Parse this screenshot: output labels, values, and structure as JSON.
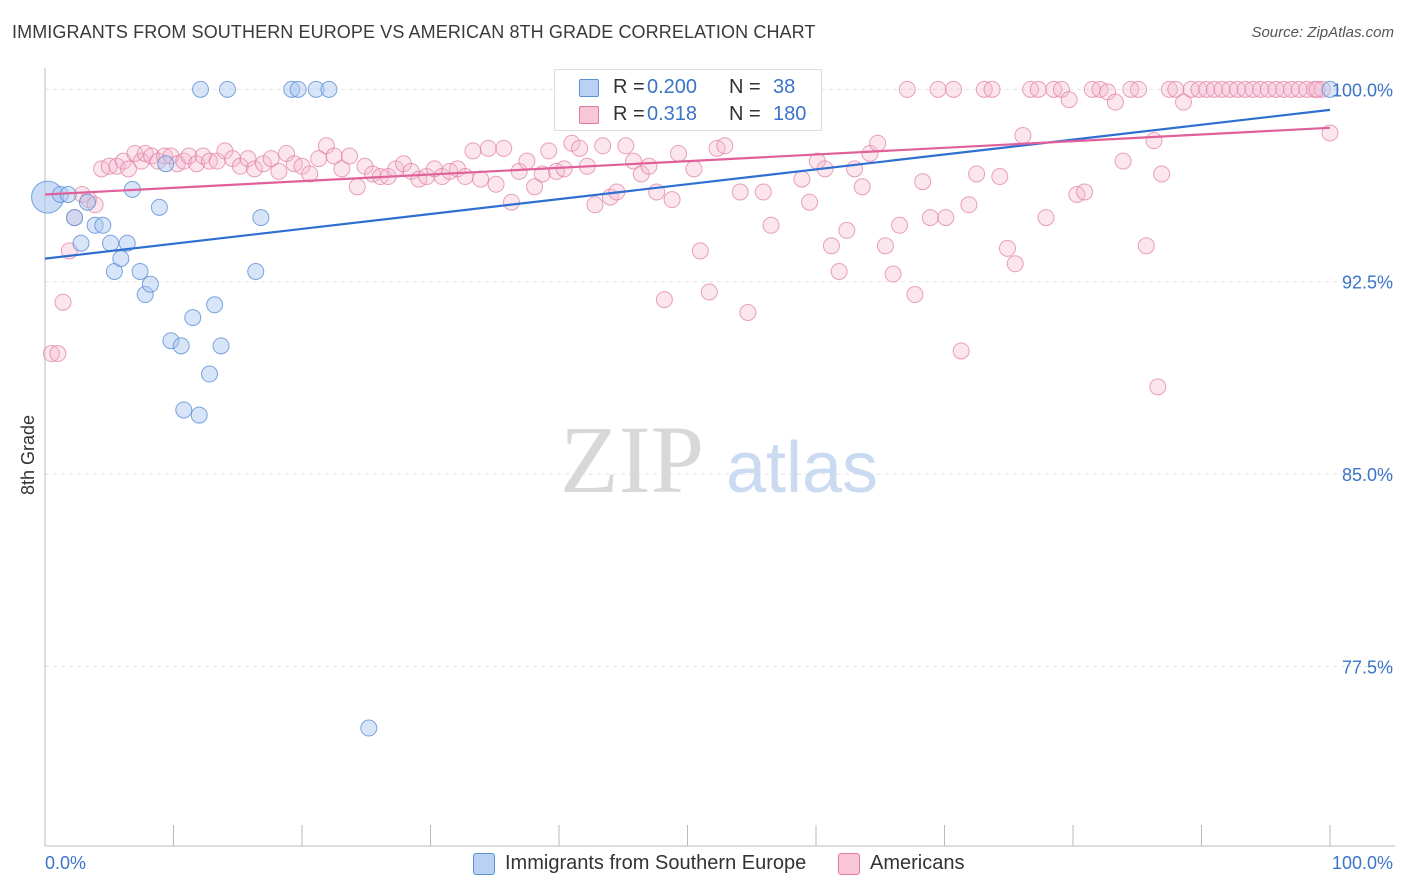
{
  "title": "IMMIGRANTS FROM SOUTHERN EUROPE VS AMERICAN 8TH GRADE CORRELATION CHART",
  "source": "Source: ZipAtlas.com",
  "watermark": {
    "zip": "ZIP",
    "atlas": "atlas"
  },
  "colors": {
    "blue": "#5b8fd6",
    "blue_fill": "#a9c6f0",
    "blue_line": "#2f6fd0",
    "pink": "#e07aa0",
    "pink_fill": "#f4b8cd",
    "pink_line": "#e0609a",
    "axis_text": "#3b74c8"
  },
  "legend": {
    "series1": {
      "r_label": "R =",
      "r_value": "0.200",
      "n_label": "N =",
      "n_value": "38"
    },
    "series2": {
      "r_label": "R =",
      "r_value": "0.318",
      "n_label": "N =",
      "n_value": "180"
    }
  },
  "bottom_legend": {
    "series1": "Immigrants from Southern Europe",
    "series2": "Americans"
  },
  "chart_data": {
    "type": "scatter",
    "title": "IMMIGRANTS FROM SOUTHERN EUROPE VS AMERICAN 8TH GRADE CORRELATION CHART",
    "xlabel": "",
    "ylabel": "8th Grade",
    "xlim": [
      0,
      100
    ],
    "ylim": [
      70.5,
      101.3
    ],
    "x_tick_labels": [
      "0.0%",
      "100.0%"
    ],
    "y_ticks": [
      77.5,
      85.0,
      92.5,
      100.0
    ],
    "y_tick_labels": [
      "77.5%",
      "85.0%",
      "92.5%",
      "100.0%"
    ],
    "series": [
      {
        "name": "Immigrants from Southern Europe",
        "r": 0.2,
        "n": 38,
        "trend": {
          "x": [
            0,
            100
          ],
          "y": [
            93.4,
            99.2
          ]
        },
        "points": [
          [
            0.2,
            95.8
          ],
          [
            1.2,
            95.9
          ],
          [
            1.8,
            95.9
          ],
          [
            2.3,
            95.0
          ],
          [
            2.8,
            94.0
          ],
          [
            3.3,
            95.6
          ],
          [
            3.9,
            94.7
          ],
          [
            4.5,
            94.7
          ],
          [
            5.1,
            94.0
          ],
          [
            5.4,
            92.9
          ],
          [
            5.9,
            93.4
          ],
          [
            6.4,
            94.0
          ],
          [
            6.8,
            96.1
          ],
          [
            7.4,
            92.9
          ],
          [
            7.8,
            92.0
          ],
          [
            8.2,
            92.4
          ],
          [
            8.9,
            95.4
          ],
          [
            9.4,
            97.1
          ],
          [
            9.8,
            90.2
          ],
          [
            10.6,
            90.0
          ],
          [
            10.8,
            87.5
          ],
          [
            11.5,
            91.1
          ],
          [
            12.0,
            87.3
          ],
          [
            12.1,
            100.0
          ],
          [
            12.8,
            88.9
          ],
          [
            13.2,
            91.6
          ],
          [
            13.7,
            90.0
          ],
          [
            14.2,
            100.0
          ],
          [
            16.4,
            92.9
          ],
          [
            16.8,
            95.0
          ],
          [
            19.2,
            100.0
          ],
          [
            19.7,
            100.0
          ],
          [
            21.1,
            100.0
          ],
          [
            22.1,
            100.0
          ],
          [
            25.2,
            75.1
          ],
          [
            100.0,
            100.0
          ]
        ]
      },
      {
        "name": "Americans",
        "r": 0.318,
        "n": 180,
        "trend": {
          "x": [
            0,
            100
          ],
          "y": [
            95.9,
            98.5
          ]
        },
        "points": [
          [
            0.5,
            89.7
          ],
          [
            1.0,
            89.7
          ],
          [
            1.4,
            91.7
          ],
          [
            1.9,
            93.7
          ],
          [
            2.3,
            95.0
          ],
          [
            2.9,
            95.9
          ],
          [
            3.4,
            95.7
          ],
          [
            3.9,
            95.5
          ],
          [
            4.4,
            96.9
          ],
          [
            5.0,
            97.0
          ],
          [
            5.6,
            97.0
          ],
          [
            6.1,
            97.2
          ],
          [
            6.5,
            96.9
          ],
          [
            7.0,
            97.5
          ],
          [
            7.5,
            97.2
          ],
          [
            7.8,
            97.5
          ],
          [
            8.3,
            97.4
          ],
          [
            8.8,
            97.2
          ],
          [
            9.3,
            97.4
          ],
          [
            9.8,
            97.4
          ],
          [
            10.3,
            97.1
          ],
          [
            10.8,
            97.2
          ],
          [
            11.2,
            97.4
          ],
          [
            11.8,
            97.1
          ],
          [
            12.3,
            97.4
          ],
          [
            12.8,
            97.2
          ],
          [
            13.4,
            97.2
          ],
          [
            14.0,
            97.6
          ],
          [
            14.6,
            97.3
          ],
          [
            15.2,
            97.0
          ],
          [
            15.8,
            97.3
          ],
          [
            16.3,
            96.9
          ],
          [
            17.0,
            97.1
          ],
          [
            17.6,
            97.3
          ],
          [
            18.2,
            96.8
          ],
          [
            18.8,
            97.5
          ],
          [
            19.4,
            97.1
          ],
          [
            20.0,
            97.0
          ],
          [
            20.6,
            96.7
          ],
          [
            21.3,
            97.3
          ],
          [
            21.9,
            97.8
          ],
          [
            22.5,
            97.4
          ],
          [
            23.1,
            96.9
          ],
          [
            23.7,
            97.4
          ],
          [
            24.3,
            96.2
          ],
          [
            24.9,
            97.0
          ],
          [
            25.5,
            96.7
          ],
          [
            26.1,
            96.6
          ],
          [
            26.7,
            96.6
          ],
          [
            27.3,
            96.9
          ],
          [
            27.9,
            97.1
          ],
          [
            28.5,
            96.8
          ],
          [
            29.1,
            96.5
          ],
          [
            29.7,
            96.6
          ],
          [
            30.3,
            96.9
          ],
          [
            30.9,
            96.6
          ],
          [
            31.5,
            96.8
          ],
          [
            32.1,
            96.9
          ],
          [
            32.7,
            96.6
          ],
          [
            33.3,
            97.6
          ],
          [
            33.9,
            96.5
          ],
          [
            34.5,
            97.7
          ],
          [
            35.1,
            96.3
          ],
          [
            35.7,
            97.7
          ],
          [
            36.3,
            95.6
          ],
          [
            36.9,
            96.8
          ],
          [
            37.5,
            97.2
          ],
          [
            38.1,
            96.2
          ],
          [
            38.7,
            96.7
          ],
          [
            39.2,
            97.6
          ],
          [
            39.8,
            96.8
          ],
          [
            40.4,
            96.9
          ],
          [
            41.0,
            97.9
          ],
          [
            41.6,
            97.7
          ],
          [
            42.2,
            97.0
          ],
          [
            42.8,
            95.5
          ],
          [
            43.4,
            97.8
          ],
          [
            44.0,
            95.8
          ],
          [
            44.5,
            96.0
          ],
          [
            45.2,
            97.8
          ],
          [
            45.8,
            97.2
          ],
          [
            46.4,
            96.7
          ],
          [
            47.0,
            97.0
          ],
          [
            47.6,
            96.0
          ],
          [
            48.2,
            91.8
          ],
          [
            48.8,
            95.7
          ],
          [
            49.3,
            97.5
          ],
          [
            49.9,
            99.0
          ],
          [
            50.5,
            96.9
          ],
          [
            51.0,
            93.7
          ],
          [
            51.7,
            92.1
          ],
          [
            52.3,
            97.7
          ],
          [
            52.9,
            97.8
          ],
          [
            53.5,
            99.0
          ],
          [
            54.1,
            96.0
          ],
          [
            54.7,
            91.3
          ],
          [
            55.3,
            99.0
          ],
          [
            55.9,
            96.0
          ],
          [
            56.5,
            94.7
          ],
          [
            57.1,
            99.0
          ],
          [
            57.7,
            99.0
          ],
          [
            58.3,
            99.0
          ],
          [
            58.9,
            96.5
          ],
          [
            59.5,
            95.6
          ],
          [
            60.1,
            97.2
          ],
          [
            60.7,
            96.9
          ],
          [
            61.2,
            93.9
          ],
          [
            61.8,
            92.9
          ],
          [
            62.4,
            94.5
          ],
          [
            63.0,
            96.9
          ],
          [
            63.6,
            96.2
          ],
          [
            64.2,
            97.5
          ],
          [
            64.8,
            97.9
          ],
          [
            65.4,
            93.9
          ],
          [
            66.0,
            92.8
          ],
          [
            66.5,
            94.7
          ],
          [
            67.1,
            100.0
          ],
          [
            67.7,
            92.0
          ],
          [
            68.3,
            96.4
          ],
          [
            68.9,
            95.0
          ],
          [
            69.5,
            100.0
          ],
          [
            70.1,
            95.0
          ],
          [
            70.7,
            100.0
          ],
          [
            71.3,
            89.8
          ],
          [
            71.9,
            95.5
          ],
          [
            72.5,
            96.7
          ],
          [
            73.1,
            100.0
          ],
          [
            73.7,
            100.0
          ],
          [
            74.3,
            96.6
          ],
          [
            74.9,
            93.8
          ],
          [
            75.5,
            93.2
          ],
          [
            76.1,
            98.2
          ],
          [
            76.7,
            100.0
          ],
          [
            77.3,
            100.0
          ],
          [
            77.9,
            95.0
          ],
          [
            78.5,
            100.0
          ],
          [
            79.1,
            100.0
          ],
          [
            79.7,
            99.6
          ],
          [
            80.3,
            95.9
          ],
          [
            80.9,
            96.0
          ],
          [
            81.5,
            100.0
          ],
          [
            82.1,
            100.0
          ],
          [
            82.7,
            99.9
          ],
          [
            83.3,
            99.5
          ],
          [
            83.9,
            97.2
          ],
          [
            84.5,
            100.0
          ],
          [
            85.1,
            100.0
          ],
          [
            85.7,
            93.9
          ],
          [
            86.3,
            98.0
          ],
          [
            86.9,
            96.7
          ],
          [
            87.5,
            100.0
          ],
          [
            88.0,
            100.0
          ],
          [
            88.6,
            99.5
          ],
          [
            89.2,
            100.0
          ],
          [
            89.8,
            100.0
          ],
          [
            90.4,
            100.0
          ],
          [
            91.0,
            100.0
          ],
          [
            91.6,
            100.0
          ],
          [
            92.2,
            100.0
          ],
          [
            92.8,
            100.0
          ],
          [
            93.4,
            100.0
          ],
          [
            94.0,
            100.0
          ],
          [
            94.6,
            100.0
          ],
          [
            95.2,
            100.0
          ],
          [
            95.8,
            100.0
          ],
          [
            96.4,
            100.0
          ],
          [
            97.0,
            100.0
          ],
          [
            97.6,
            100.0
          ],
          [
            98.2,
            100.0
          ],
          [
            98.8,
            100.0
          ],
          [
            99.4,
            100.0
          ],
          [
            100.0,
            98.3
          ],
          [
            86.6,
            88.4
          ],
          [
            99.0,
            100.0
          ]
        ]
      }
    ]
  }
}
